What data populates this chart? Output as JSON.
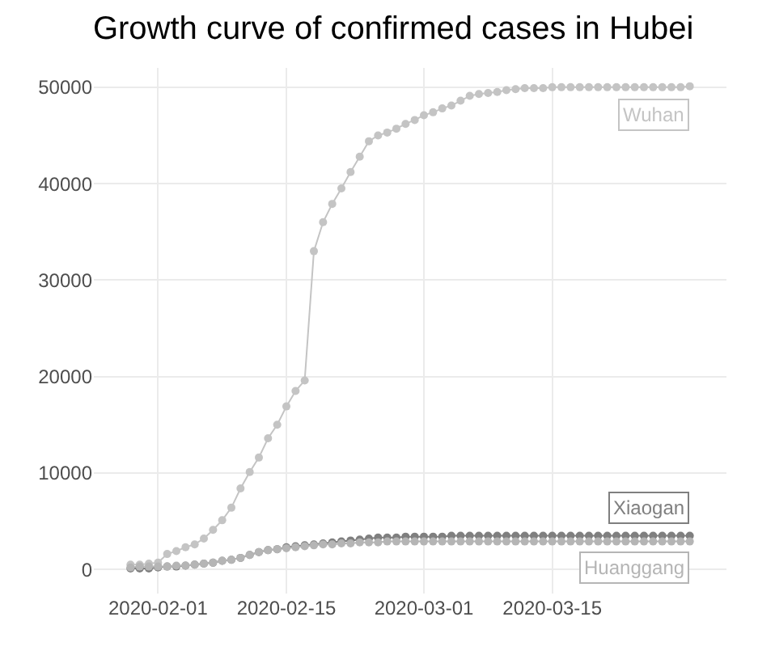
{
  "chart_data": {
    "type": "line",
    "title": "Growth curve of confirmed cases in Hubei",
    "x": [
      "2020-01-29",
      "2020-01-30",
      "2020-01-31",
      "2020-02-01",
      "2020-02-02",
      "2020-02-03",
      "2020-02-04",
      "2020-02-05",
      "2020-02-06",
      "2020-02-07",
      "2020-02-08",
      "2020-02-09",
      "2020-02-10",
      "2020-02-11",
      "2020-02-12",
      "2020-02-13",
      "2020-02-14",
      "2020-02-15",
      "2020-02-16",
      "2020-02-17",
      "2020-02-18",
      "2020-02-19",
      "2020-02-20",
      "2020-02-21",
      "2020-02-22",
      "2020-02-23",
      "2020-02-24",
      "2020-02-25",
      "2020-02-26",
      "2020-02-27",
      "2020-02-28",
      "2020-02-29",
      "2020-03-01",
      "2020-03-02",
      "2020-03-03",
      "2020-03-04",
      "2020-03-05",
      "2020-03-06",
      "2020-03-07",
      "2020-03-08",
      "2020-03-09",
      "2020-03-10",
      "2020-03-11",
      "2020-03-12",
      "2020-03-13",
      "2020-03-14",
      "2020-03-15",
      "2020-03-16",
      "2020-03-17",
      "2020-03-18",
      "2020-03-19",
      "2020-03-20",
      "2020-03-21",
      "2020-03-22",
      "2020-03-23",
      "2020-03-24",
      "2020-03-25",
      "2020-03-26",
      "2020-03-27",
      "2020-03-28",
      "2020-03-29",
      "2020-03-30"
    ],
    "series": [
      {
        "name": "Wuhan",
        "color": "#c4c4c4",
        "values": [
          500,
          500,
          600,
          700,
          1600,
          1900,
          2300,
          2600,
          3200,
          4100,
          5100,
          6400,
          8400,
          10100,
          11600,
          13600,
          15000,
          16900,
          18500,
          19600,
          33000,
          36000,
          37900,
          39500,
          41200,
          42800,
          44400,
          45000,
          45300,
          45700,
          46200,
          46600,
          47100,
          47400,
          47800,
          48100,
          48600,
          49100,
          49300,
          49400,
          49500,
          49700,
          49800,
          49900,
          49900,
          49900,
          50000,
          50000,
          50000,
          50000,
          50000,
          50000,
          50000,
          50000,
          50000,
          50000,
          50000,
          50000,
          50000,
          50000,
          50000,
          50100
        ]
      },
      {
        "name": "Xiaogan",
        "color": "#7f7f7f",
        "values": [
          100,
          100,
          100,
          200,
          300,
          300,
          400,
          500,
          600,
          700,
          900,
          1000,
          1200,
          1500,
          1800,
          2000,
          2100,
          2300,
          2400,
          2500,
          2600,
          2700,
          2800,
          2900,
          3000,
          3100,
          3200,
          3300,
          3300,
          3300,
          3400,
          3400,
          3400,
          3400,
          3400,
          3500,
          3500,
          3500,
          3500,
          3500,
          3500,
          3500,
          3500,
          3500,
          3500,
          3500,
          3500,
          3500,
          3500,
          3500,
          3500,
          3500,
          3500,
          3500,
          3500,
          3500,
          3500,
          3500,
          3500,
          3500,
          3500,
          3500
        ]
      },
      {
        "name": "Huanggang",
        "color": "#b5b5b5",
        "values": [
          200,
          300,
          300,
          300,
          300,
          400,
          400,
          500,
          600,
          700,
          900,
          1000,
          1200,
          1500,
          1800,
          2000,
          2100,
          2200,
          2300,
          2400,
          2500,
          2600,
          2600,
          2700,
          2700,
          2800,
          2800,
          2800,
          2900,
          2900,
          2900,
          2900,
          2900,
          2900,
          2900,
          2900,
          2900,
          2900,
          2900,
          2900,
          2900,
          2900,
          2900,
          2900,
          2900,
          2900,
          2900,
          2900,
          2900,
          2900,
          2900,
          2900,
          2900,
          2900,
          2900,
          2900,
          2900,
          2900,
          2900,
          2900,
          2900,
          2900
        ]
      }
    ],
    "xlim": [
      "2020-01-25",
      "2020-04-03"
    ],
    "xticks": [
      "2020-02-01",
      "2020-02-15",
      "2020-03-01",
      "2020-03-15"
    ],
    "ylim": [
      -2500,
      52000
    ],
    "yticks": [
      0,
      10000,
      20000,
      30000,
      40000,
      50000
    ],
    "grid": true,
    "marker": "circle",
    "line_style": "solid",
    "legend": false
  }
}
